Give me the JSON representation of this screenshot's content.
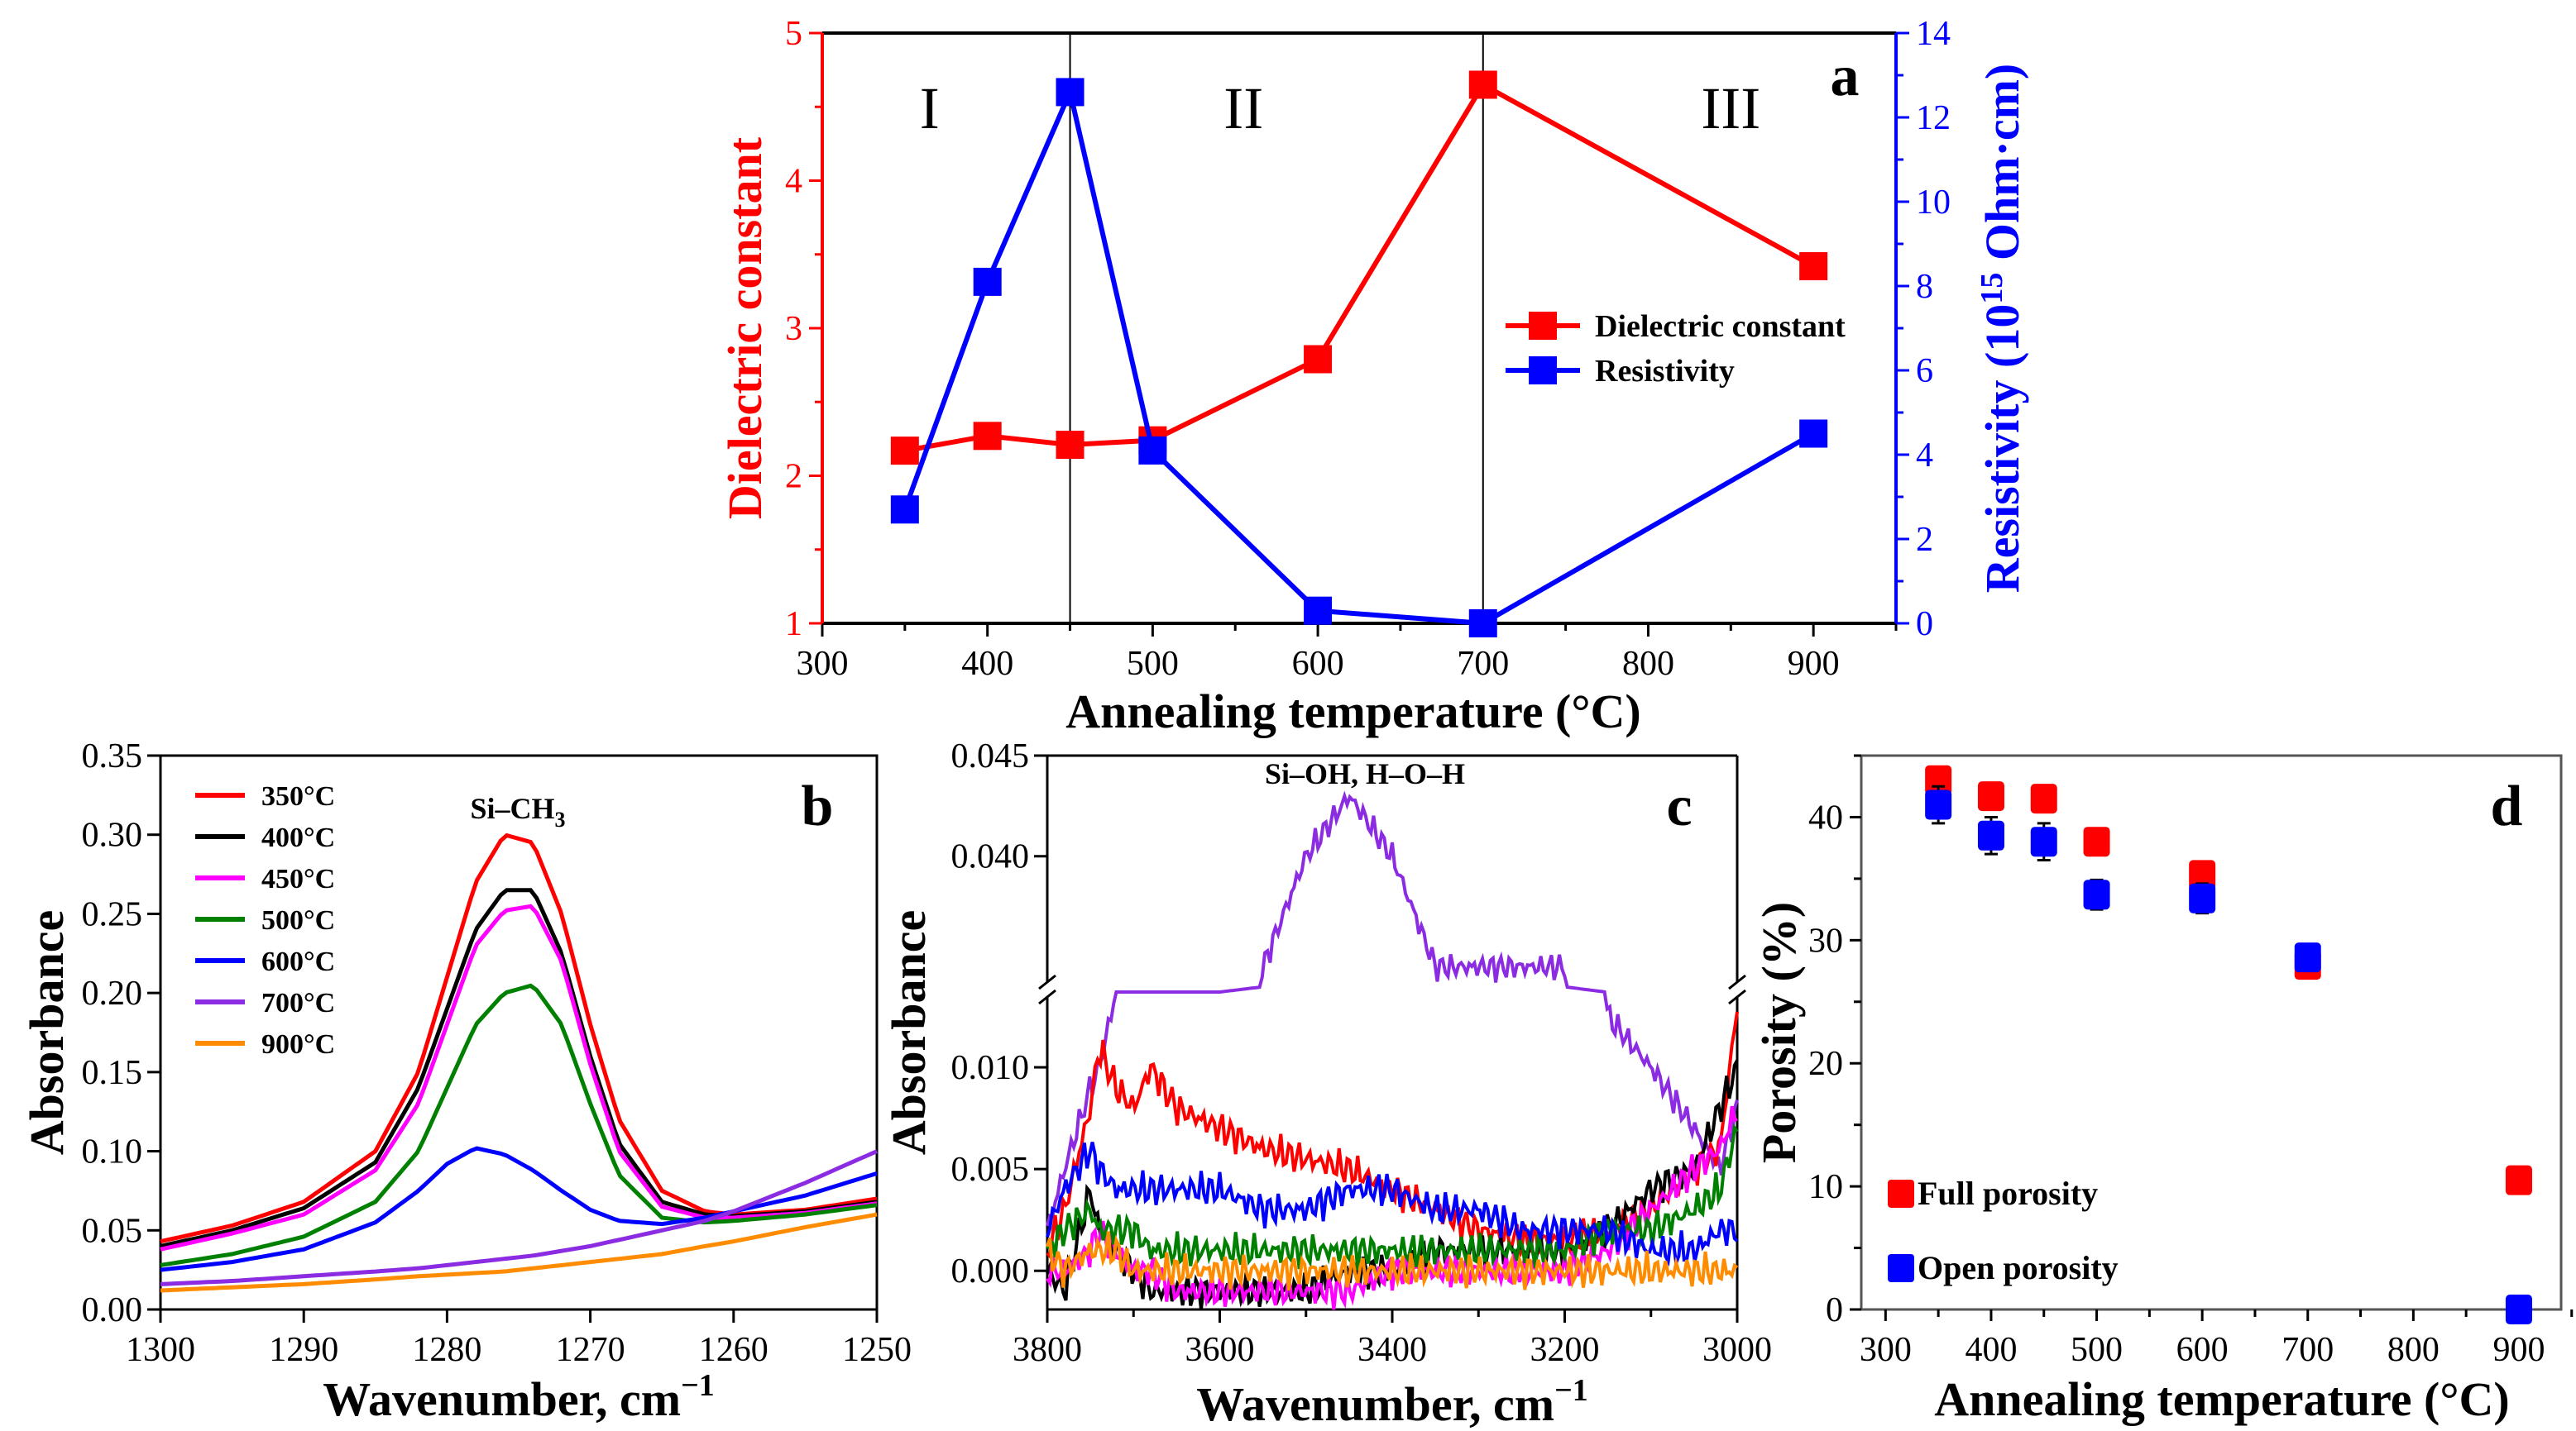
{
  "chart_data": [
    {
      "panel": "a",
      "type": "line",
      "xlabel": "Annealing temperature (°C)",
      "ylabel": "Dielectric constant",
      "ylabel_right": "Resistivity (10",
      "ylabel_right_sup": "15",
      "ylabel_right_end": " Ohm·cm)",
      "xlim": [
        300,
        950
      ],
      "ylim": [
        1,
        5
      ],
      "ylim_right": [
        0,
        14
      ],
      "xticks": [
        300,
        400,
        500,
        600,
        700,
        800,
        900
      ],
      "yticks": [
        1,
        2,
        3,
        4,
        5
      ],
      "yticks_right": [
        0,
        2,
        4,
        6,
        8,
        10,
        12,
        14
      ],
      "region_lines": [
        450,
        700
      ],
      "regions": [
        "I",
        "II",
        "III"
      ],
      "panel_label": "a",
      "legend_position": "center-right",
      "x": [
        350,
        400,
        450,
        500,
        600,
        700,
        900
      ],
      "series": [
        {
          "name": "Dielectric constant",
          "axis": "left",
          "color": "#ff0000",
          "values": [
            2.17,
            2.27,
            2.21,
            2.24,
            2.79,
            4.65,
            3.42
          ]
        },
        {
          "name": "Resistivity",
          "axis": "right",
          "color": "#0000ff",
          "values": [
            2.7,
            8.1,
            12.6,
            4.1,
            0.3,
            0.0,
            4.5
          ]
        }
      ]
    },
    {
      "panel": "b",
      "type": "line",
      "xlabel": "Wavenumber, cm",
      "xlabel_sup": "−1",
      "ylabel": "Absorbance",
      "annotation": "Si–CH",
      "annotation_sub": "3",
      "panel_label": "b",
      "xlim": [
        1300,
        1250
      ],
      "ylim": [
        0,
        0.35
      ],
      "xticks": [
        1300,
        1290,
        1280,
        1270,
        1260,
        1250
      ],
      "yticks": [
        "0.00",
        "0.05",
        "0.10",
        "0.15",
        "0.20",
        "0.25",
        "0.30",
        "0.35"
      ],
      "legend_position": "top-left",
      "x": [
        1300,
        1295,
        1290,
        1285,
        1282,
        1280,
        1278,
        1276,
        1274,
        1272,
        1270,
        1268,
        1265,
        1262,
        1260,
        1255,
        1250
      ],
      "series": [
        {
          "name": "350°C",
          "color": "#ff0000",
          "values": [
            0.043,
            0.053,
            0.068,
            0.1,
            0.15,
            0.21,
            0.27,
            0.3,
            0.295,
            0.25,
            0.18,
            0.12,
            0.075,
            0.062,
            0.06,
            0.063,
            0.07
          ]
        },
        {
          "name": "400°C",
          "color": "#000000",
          "values": [
            0.04,
            0.05,
            0.064,
            0.093,
            0.14,
            0.19,
            0.24,
            0.265,
            0.265,
            0.225,
            0.16,
            0.105,
            0.068,
            0.06,
            0.059,
            0.062,
            0.068
          ]
        },
        {
          "name": "450°C",
          "color": "#ff00ff",
          "values": [
            0.038,
            0.048,
            0.06,
            0.088,
            0.13,
            0.18,
            0.23,
            0.252,
            0.255,
            0.22,
            0.155,
            0.1,
            0.065,
            0.058,
            0.058,
            0.061,
            0.067
          ]
        },
        {
          "name": "500°C",
          "color": "#008000",
          "values": [
            0.028,
            0.035,
            0.046,
            0.068,
            0.1,
            0.14,
            0.18,
            0.2,
            0.205,
            0.18,
            0.13,
            0.085,
            0.058,
            0.055,
            0.056,
            0.06,
            0.066
          ]
        },
        {
          "name": "600°C",
          "color": "#0000ff",
          "values": [
            0.025,
            0.03,
            0.038,
            0.055,
            0.075,
            0.092,
            0.102,
            0.098,
            0.088,
            0.075,
            0.063,
            0.056,
            0.054,
            0.058,
            0.062,
            0.072,
            0.086
          ]
        },
        {
          "name": "700°C",
          "color": "#8b2be2",
          "values": [
            0.016,
            0.018,
            0.021,
            0.024,
            0.026,
            0.028,
            0.03,
            0.032,
            0.034,
            0.037,
            0.04,
            0.044,
            0.05,
            0.056,
            0.062,
            0.08,
            0.1
          ]
        },
        {
          "name": "900°C",
          "color": "#ff8c00",
          "values": [
            0.012,
            0.014,
            0.016,
            0.019,
            0.021,
            0.022,
            0.023,
            0.024,
            0.026,
            0.028,
            0.03,
            0.032,
            0.035,
            0.04,
            0.043,
            0.052,
            0.06
          ]
        }
      ]
    },
    {
      "panel": "c",
      "type": "line",
      "xlabel": "Wavenumber, cm",
      "xlabel_sup": "−1",
      "ylabel": "Absorbance",
      "annotation": "Si–OH, H–O–H",
      "panel_label": "c",
      "xlim": [
        3800,
        3000
      ],
      "ylim_lower": [
        -0.0019,
        0.0137
      ],
      "ylim_upper": [
        0.0335,
        0.045
      ],
      "xticks": [
        3800,
        3600,
        3400,
        3200,
        3000
      ],
      "yticks_lower": [
        "0.000",
        "0.005",
        "0.010"
      ],
      "yticks_upper": [
        "0.040",
        "0.045"
      ],
      "x": [
        3800,
        3780,
        3750,
        3740,
        3720,
        3700,
        3680,
        3650,
        3600,
        3550,
        3500,
        3450,
        3400,
        3350,
        3300,
        3250,
        3200,
        3150,
        3100,
        3050,
        3020,
        3000
      ],
      "series": [
        {
          "name": "700°C",
          "color": "#8b2be2",
          "values": [
            0.002,
            0.005,
            0.009,
            0.01,
            0.0137,
            0.0137,
            0.0137,
            0.0137,
            0.0137,
            0.0345,
            0.04,
            0.043,
            0.04,
            0.0345,
            0.0345,
            0.0345,
            0.0345,
            0.0125,
            0.01,
            0.007,
            0.005,
            0.008
          ]
        },
        {
          "name": "350°C",
          "color": "#ff0000",
          "values": [
            0.001,
            0.003,
            0.008,
            0.011,
            0.009,
            0.008,
            0.01,
            0.008,
            0.007,
            0.006,
            0.0055,
            0.005,
            0.004,
            0.003,
            0.002,
            0.0015,
            0.0015,
            0.002,
            0.003,
            0.005,
            0.006,
            0.013
          ]
        },
        {
          "name": "400°C",
          "color": "#000000",
          "values": [
            0.0,
            -0.001,
            0.004,
            0.002,
            0.001,
            0.0,
            -0.001,
            -0.001,
            -0.001,
            -0.001,
            -0.001,
            0.0,
            0.0,
            0.001,
            0.001,
            0.001,
            0.001,
            0.002,
            0.004,
            0.005,
            0.008,
            0.01
          ]
        },
        {
          "name": "450°C",
          "color": "#ff00ff",
          "values": [
            0.0,
            0.0,
            0.001,
            0.002,
            0.001,
            0.0,
            0.0,
            -0.001,
            -0.001,
            -0.001,
            -0.001,
            -0.001,
            0.0,
            0.0,
            0.0,
            0.0,
            0.0,
            0.001,
            0.003,
            0.005,
            0.006,
            0.008
          ]
        },
        {
          "name": "500°C",
          "color": "#008000",
          "values": [
            0.001,
            0.002,
            0.003,
            0.002,
            0.002,
            0.002,
            0.001,
            0.001,
            0.001,
            0.001,
            0.001,
            0.001,
            0.001,
            0.001,
            0.001,
            0.001,
            0.001,
            0.002,
            0.002,
            0.003,
            0.004,
            0.007
          ]
        },
        {
          "name": "600°C",
          "color": "#0000ff",
          "values": [
            0.002,
            0.004,
            0.006,
            0.005,
            0.004,
            0.004,
            0.004,
            0.004,
            0.004,
            0.003,
            0.003,
            0.004,
            0.004,
            0.003,
            0.003,
            0.002,
            0.002,
            0.002,
            0.001,
            0.001,
            0.002,
            0.002
          ]
        },
        {
          "name": "900°C",
          "color": "#ff8c00",
          "values": [
            0.001,
            0.0,
            0.001,
            0.001,
            0.001,
            0.0,
            0.0,
            0.0,
            0.0,
            0.0,
            0.0,
            0.0,
            0.0,
            0.0,
            0.0,
            0.0,
            0.0,
            0.0,
            0.0,
            0.0,
            0.0,
            0.0
          ]
        }
      ]
    },
    {
      "panel": "d",
      "type": "scatter",
      "xlabel": "Annealing temperature (°C)",
      "ylabel": "Porosity (%)",
      "panel_label": "d",
      "xlim": [
        277,
        940
      ],
      "ylim": [
        0,
        45
      ],
      "xticks": [
        300,
        400,
        500,
        600,
        700,
        800,
        900
      ],
      "yticks": [
        0,
        10,
        20,
        30,
        40
      ],
      "legend_position": "bottom-left",
      "x": [
        350,
        400,
        450,
        500,
        600,
        700,
        900
      ],
      "series": [
        {
          "name": "Full porosity",
          "color": "#ff0000",
          "values": [
            43.0,
            41.7,
            41.5,
            38.0,
            35.3,
            28.0,
            10.5
          ],
          "error": [
            1.0,
            1.0,
            1.0,
            1.0,
            0.8,
            0.5,
            0
          ]
        },
        {
          "name": "Open porosity",
          "color": "#0000ff",
          "values": [
            41.0,
            38.5,
            38.0,
            33.7,
            33.4,
            28.6,
            0.0
          ],
          "error": [
            1.5,
            1.5,
            1.5,
            1.2,
            1.2,
            1.0,
            0
          ]
        }
      ]
    }
  ]
}
